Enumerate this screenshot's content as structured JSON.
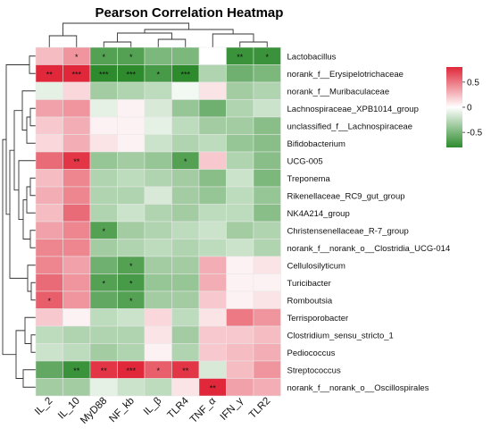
{
  "chart_data": {
    "type": "heatmap",
    "title": "Pearson Correlation Heatmap",
    "columns": [
      "IL_2",
      "IL_10",
      "MyD88",
      "NF_kb",
      "IL_β",
      "TLR4",
      "TNF_α",
      "IFN_γ",
      "TLR2"
    ],
    "rows": [
      "Lactobacillus",
      "norank_f__Erysipelotrichaceae",
      "norank_f__Muribaculaceae",
      "Lachnospiraceae_XPB1014_group",
      "unclassified_f__Lachnospiraceae",
      "Bifidobacterium",
      "UCG-005",
      "Treponema",
      "Rikenellaceae_RC9_gut_group",
      "NK4A214_group",
      "Christensenellaceae_R-7_group",
      "norank_f__norank_o__Clostridia_UCG-014",
      "Cellulosilyticum",
      "Turicibacter",
      "Romboutsia",
      "Terrisporobacter",
      "Clostridium_sensu_stricto_1",
      "Pediococcus",
      "Streptococcus",
      "norank_f__norank_o__Oscillospirales"
    ],
    "values": [
      [
        0.25,
        0.4,
        -0.65,
        -0.65,
        -0.5,
        -0.5,
        0.0,
        -0.75,
        -0.75
      ],
      [
        0.8,
        0.8,
        -0.85,
        -0.85,
        -0.7,
        -0.8,
        -0.3,
        -0.55,
        -0.5
      ],
      [
        -0.1,
        0.15,
        -0.35,
        -0.3,
        -0.25,
        -0.05,
        0.1,
        -0.35,
        -0.3
      ],
      [
        0.35,
        0.4,
        -0.1,
        0.05,
        -0.15,
        -0.4,
        -0.55,
        -0.3,
        -0.2
      ],
      [
        0.2,
        0.3,
        0.05,
        0.05,
        -0.1,
        -0.25,
        -0.35,
        -0.35,
        -0.45
      ],
      [
        0.15,
        0.3,
        0.1,
        0.05,
        -0.2,
        -0.3,
        -0.25,
        -0.4,
        -0.45
      ],
      [
        0.55,
        0.75,
        -0.4,
        -0.35,
        -0.4,
        -0.65,
        0.2,
        -0.3,
        -0.45
      ],
      [
        0.25,
        0.45,
        -0.3,
        -0.25,
        -0.3,
        -0.35,
        -0.45,
        -0.2,
        -0.5
      ],
      [
        0.3,
        0.45,
        -0.3,
        -0.3,
        -0.15,
        -0.35,
        -0.4,
        -0.25,
        -0.4
      ],
      [
        0.25,
        0.55,
        -0.3,
        -0.2,
        -0.3,
        -0.35,
        -0.25,
        -0.25,
        -0.45
      ],
      [
        0.35,
        0.45,
        -0.65,
        -0.35,
        -0.3,
        -0.25,
        -0.2,
        -0.35,
        -0.3
      ],
      [
        0.45,
        0.45,
        -0.35,
        -0.3,
        -0.25,
        -0.3,
        -0.25,
        -0.2,
        -0.3
      ],
      [
        0.45,
        0.35,
        -0.55,
        -0.65,
        -0.35,
        -0.35,
        0.3,
        0.05,
        0.1
      ],
      [
        0.55,
        0.4,
        -0.65,
        -0.7,
        -0.4,
        -0.4,
        0.3,
        0.05,
        0.05
      ],
      [
        0.6,
        0.4,
        -0.6,
        -0.65,
        -0.35,
        -0.35,
        0.2,
        0.05,
        0.1
      ],
      [
        0.2,
        0.05,
        -0.25,
        -0.2,
        0.15,
        -0.25,
        0.1,
        0.5,
        0.4
      ],
      [
        -0.25,
        -0.3,
        -0.3,
        -0.3,
        0.1,
        -0.35,
        0.2,
        0.2,
        0.25
      ],
      [
        -0.2,
        -0.25,
        -0.35,
        -0.3,
        0.05,
        -0.3,
        0.2,
        0.25,
        0.3
      ],
      [
        -0.6,
        -0.75,
        0.75,
        0.85,
        0.6,
        0.75,
        -0.15,
        0.25,
        0.4
      ],
      [
        -0.35,
        -0.35,
        -0.1,
        -0.2,
        -0.25,
        0.1,
        0.8,
        0.35,
        0.3
      ]
    ],
    "significance": [
      [
        "",
        "*",
        "*",
        "*",
        "",
        "",
        "",
        "**",
        "*"
      ],
      [
        "**",
        "***",
        "***",
        "***",
        "*",
        "***",
        "",
        "",
        ""
      ],
      [
        "",
        "",
        "",
        "",
        "",
        "",
        "",
        "",
        ""
      ],
      [
        "",
        "",
        "",
        "",
        "",
        "",
        "",
        "",
        ""
      ],
      [
        "",
        "",
        "",
        "",
        "",
        "",
        "",
        "",
        ""
      ],
      [
        "",
        "",
        "",
        "",
        "",
        "",
        "",
        "",
        ""
      ],
      [
        "",
        "**",
        "",
        "",
        "",
        "*",
        "",
        "",
        ""
      ],
      [
        "",
        "",
        "",
        "",
        "",
        "",
        "",
        "",
        ""
      ],
      [
        "",
        "",
        "",
        "",
        "",
        "",
        "",
        "",
        ""
      ],
      [
        "",
        "",
        "",
        "",
        "",
        "",
        "",
        "",
        ""
      ],
      [
        "",
        "",
        "*",
        "",
        "",
        "",
        "",
        "",
        ""
      ],
      [
        "",
        "",
        "",
        "",
        "",
        "",
        "",
        "",
        ""
      ],
      [
        "",
        "",
        "",
        "*",
        "",
        "",
        "",
        "",
        ""
      ],
      [
        "",
        "",
        "*",
        "*",
        "",
        "",
        "",
        "",
        ""
      ],
      [
        "*",
        "",
        "",
        "*",
        "",
        "",
        "",
        "",
        ""
      ],
      [
        "",
        "",
        "",
        "",
        "",
        "",
        "",
        "",
        ""
      ],
      [
        "",
        "",
        "",
        "",
        "",
        "",
        "",
        "",
        ""
      ],
      [
        "",
        "",
        "",
        "",
        "",
        "",
        "",
        "",
        ""
      ],
      [
        "",
        "**",
        "**",
        "***",
        "*",
        "**",
        "",
        "",
        ""
      ],
      [
        "",
        "",
        "",
        "",
        "",
        "",
        "**",
        "",
        ""
      ]
    ],
    "colorbar": {
      "range": [
        -0.8,
        0.8
      ],
      "ticks": [
        0.5,
        0,
        -0.5
      ],
      "colors": {
        "low": "#2d8b2d",
        "mid": "#ffffff",
        "high": "#e0283a"
      }
    },
    "dendrograms": {
      "rows": "left",
      "columns": "top"
    }
  }
}
